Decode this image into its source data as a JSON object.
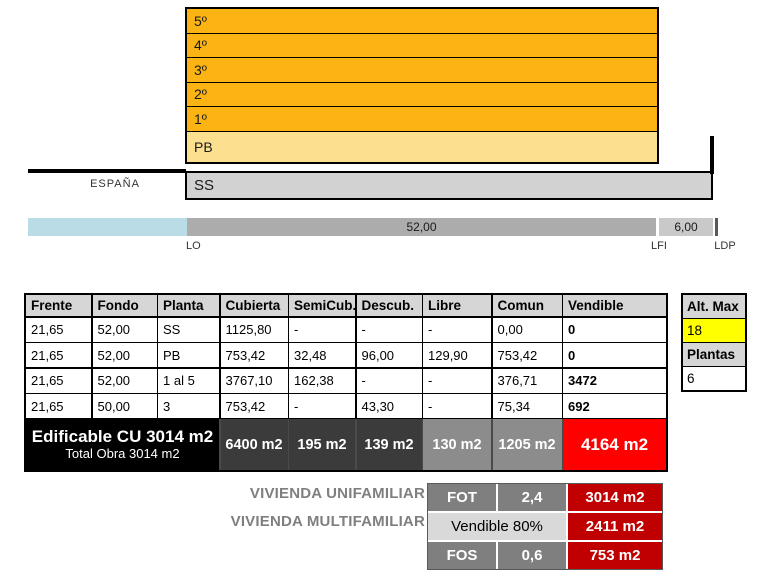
{
  "diagram": {
    "floors": [
      "5º",
      "4º",
      "3º",
      "2º",
      "1º"
    ],
    "ground_floor_label": "PB",
    "basement_label": "SS",
    "country_label": "ESPAÑA",
    "dimension_bar": {
      "main_width": "52,00",
      "side_width": "6,00",
      "label_lo": "LO",
      "label_lfi": "LFI",
      "label_ldp": "LDP"
    },
    "colors": {
      "floor_orange": "#FBB414",
      "ground_floor_yellow": "#FCE08F",
      "basement_gray": "#D2D2D2",
      "sidewalk_blue": "#B9DCE7"
    }
  },
  "main_table": {
    "headers": [
      "Frente",
      "Fondo",
      "Planta",
      "Cubierta",
      "SemiCub.",
      "Descub.",
      "Libre",
      "Comun",
      "Vendible"
    ],
    "rows": [
      [
        "21,65",
        "52,00",
        "SS",
        "1125,80",
        "-",
        "-",
        "-",
        "0,00",
        "0"
      ],
      [
        "21,65",
        "52,00",
        "PB",
        "753,42",
        "32,48",
        "96,00",
        "129,90",
        "753,42",
        "0"
      ],
      [
        "21,65",
        "52,00",
        "1 al 5",
        "3767,10",
        "162,38",
        "-",
        "-",
        "376,71",
        "3472"
      ],
      [
        "21,65",
        "50,00",
        "3",
        "753,42",
        "-",
        "43,30",
        "-",
        "75,34",
        "692"
      ]
    ],
    "summary": {
      "title": "Edificable CU 3014 m2",
      "subtitle": "Total Obra 3014 m2",
      "values": [
        "6400 m2",
        "195 m2",
        "139 m2",
        "130 m2",
        "1205 m2",
        "4164 m2"
      ],
      "highlight_color": "#FE0000"
    }
  },
  "side_table": {
    "alt_max_label": "Alt. Max",
    "alt_max_value": "18",
    "plantas_label": "Plantas",
    "plantas_value": "6",
    "highlight_color": "#FFFF00"
  },
  "bottom_section": {
    "label_unifamiliar": "VIVIENDA UNIFAMILIAR",
    "label_multifamiliar": "VIVIENDA MULTIFAMILIAR",
    "fot_label": "FOT",
    "fot_value": "2,4",
    "fot_result": "3014 m2",
    "vendible_label": "Vendible 80%",
    "vendible_result": "2411 m2",
    "fos_label": "FOS",
    "fos_value": "0,6",
    "fos_result": "753 m2",
    "result_color": "#C00000"
  }
}
